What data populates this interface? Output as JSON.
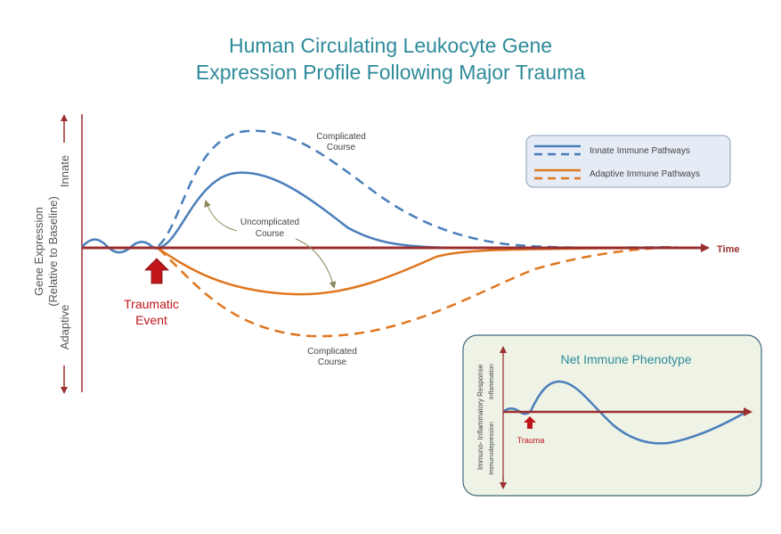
{
  "title": {
    "line1": "Human Circulating Leukocyte Gene",
    "line2": "Expression Profile Following Major Trauma"
  },
  "y_axis": {
    "label_line1": "Gene Expression",
    "label_line2": "(Relative to Baseline)",
    "top_label": "Innate",
    "bottom_label": "Adaptive"
  },
  "x_axis": {
    "label": "Time"
  },
  "event": {
    "line1": "Traumatic",
    "line2": "Event"
  },
  "annotations": {
    "complicated_top_line1": "Complicated",
    "complicated_top_line2": "Course",
    "uncomplicated_line1": "Uncomplicated",
    "uncomplicated_line2": "Course",
    "complicated_bottom_line1": "Complicated",
    "complicated_bottom_line2": "Course"
  },
  "legend": {
    "innate": "Innate  Immune  Pathways",
    "adaptive": "Adaptive Immune  Pathways"
  },
  "inset": {
    "title": "Net Immune Phenotype",
    "y_label": "Immuno- Inflammatory Response",
    "upper_label": "Inflammation",
    "lower_label": "Immunodepression",
    "event_label": "Trauma"
  },
  "colors": {
    "innate": "#4a7ebb",
    "adaptive": "#e0761f",
    "axis": "#9b2f2f",
    "title": "#2e8b9a",
    "event_arrow": "#c0161b",
    "inset_fill": "#eef3e6",
    "legend_fill": "#e6ecf5"
  }
}
